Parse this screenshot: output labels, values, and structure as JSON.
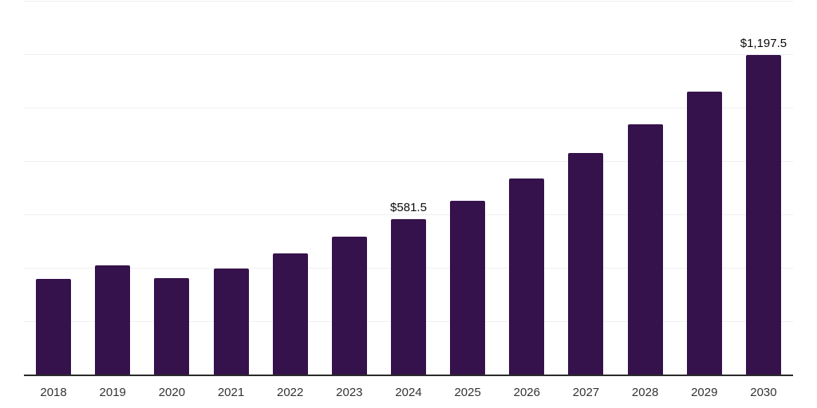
{
  "chart_data": {
    "type": "bar",
    "title": "",
    "xlabel": "",
    "ylabel": "",
    "categories": [
      "2018",
      "2019",
      "2020",
      "2021",
      "2022",
      "2023",
      "2024",
      "2025",
      "2026",
      "2027",
      "2028",
      "2029",
      "2030"
    ],
    "values": [
      358.0,
      409.0,
      361.0,
      397.0,
      453.5,
      517.0,
      581.5,
      652.0,
      734.5,
      830.0,
      937.5,
      1060.0,
      1197.5
    ],
    "value_labels": {
      "2024": "$581.5",
      "2030": "$1,197.5"
    },
    "ylim": [
      0,
      1400
    ],
    "gridline_step": 200,
    "grid": "horizontal-only",
    "legend_position": "none",
    "y_tick_labels_visible": false,
    "colors": {
      "bar": "#35124B",
      "gridline": "#f0f0f0",
      "axis_line": "#2b2b2b",
      "tick_label": "#333333",
      "value_label": "#0a0a0a",
      "background": "#ffffff"
    }
  }
}
